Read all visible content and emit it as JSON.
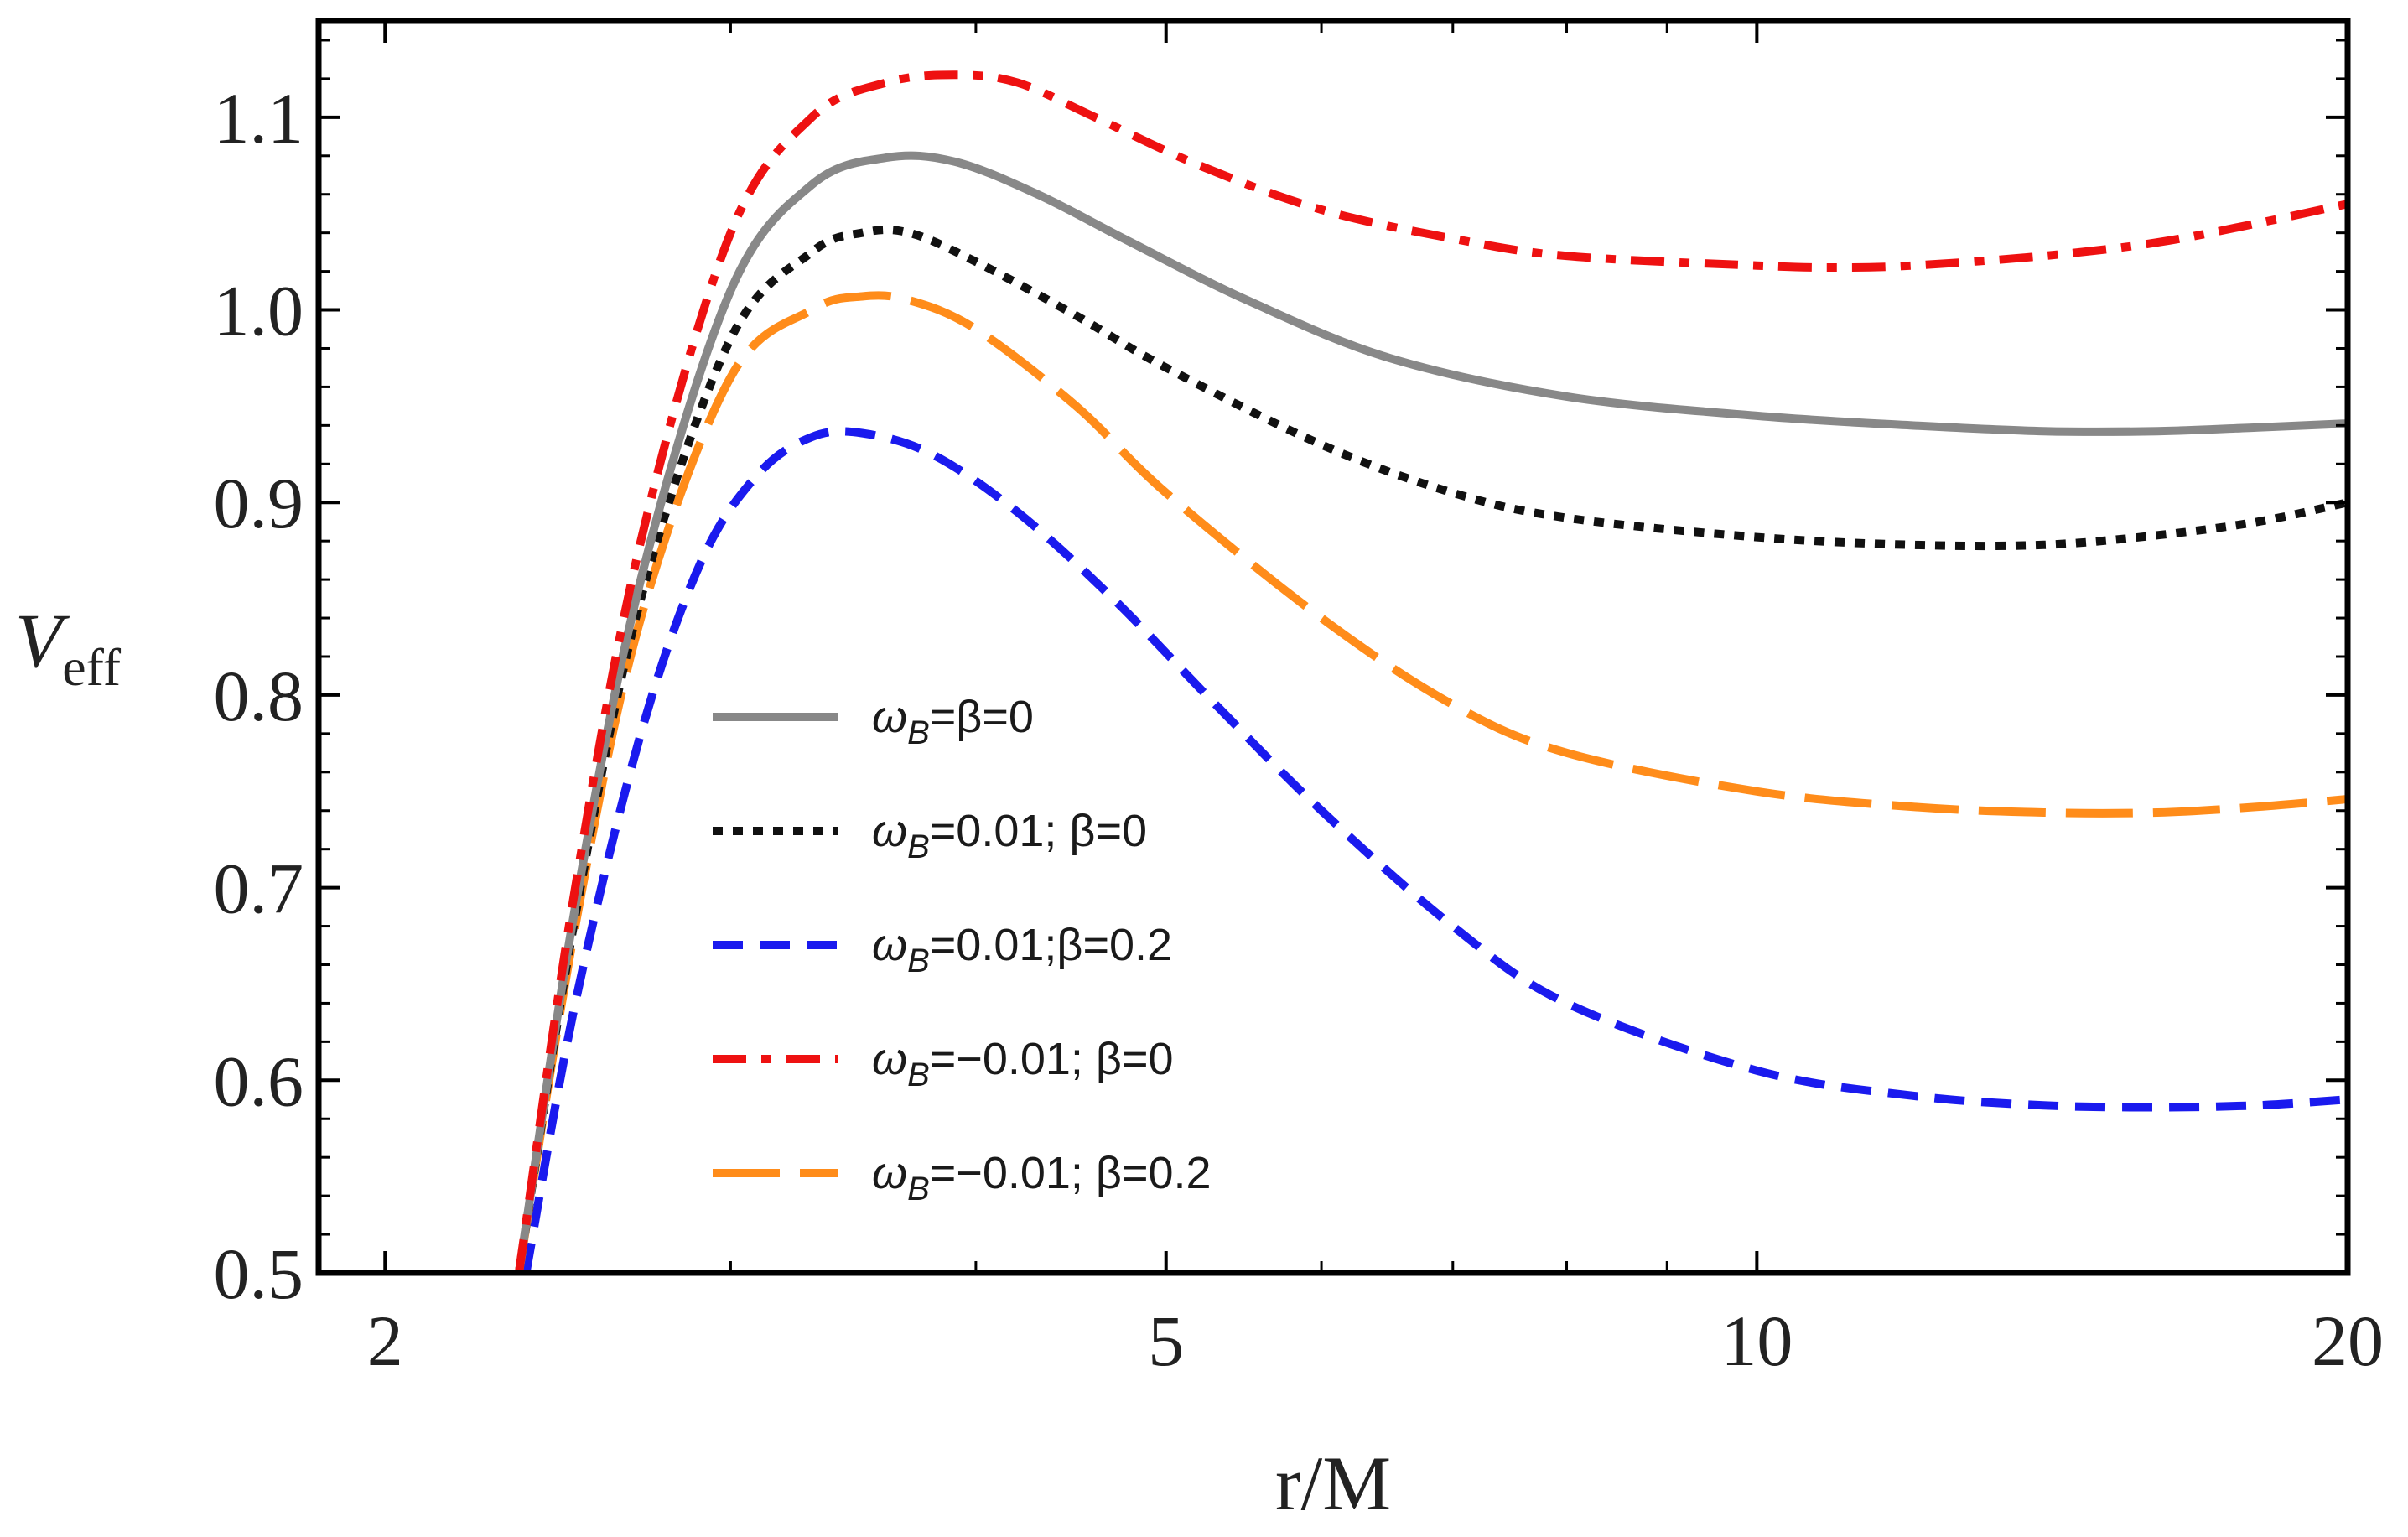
{
  "chart_data": {
    "type": "line",
    "title": "",
    "xlabel": "r/M",
    "ylabel": "V",
    "ylabel_subscript": "eff",
    "xscale": "log",
    "xlim": [
      1.85,
      20
    ],
    "ylim": [
      0.5,
      1.15
    ],
    "grid": false,
    "frame": "ticks on all four sides",
    "x_ticks": [
      {
        "value": 2,
        "label": "2"
      },
      {
        "value": 5,
        "label": "5"
      },
      {
        "value": 10,
        "label": "10"
      },
      {
        "value": 20,
        "label": "20"
      }
    ],
    "x_minor_ticks": [
      3,
      4,
      6,
      7,
      8,
      9
    ],
    "y_ticks": [
      {
        "value": 0.5,
        "label": "0.5"
      },
      {
        "value": 0.6,
        "label": "0.6"
      },
      {
        "value": 0.7,
        "label": "0.7"
      },
      {
        "value": 0.8,
        "label": "0.8"
      },
      {
        "value": 0.9,
        "label": "0.9"
      },
      {
        "value": 1.0,
        "label": "1.0"
      },
      {
        "value": 1.1,
        "label": "1.1"
      }
    ],
    "legend_position": "center",
    "series": [
      {
        "name": "ωB=β=0",
        "legend": {
          "w": "ω",
          "sub": "B",
          "rest": "=β=0"
        },
        "color": "#888888",
        "style": "solid",
        "x": [
          2.34,
          2.5,
          2.7,
          3.0,
          3.3,
          3.6,
          3.9,
          4.3,
          4.8,
          5.5,
          6.5,
          8.0,
          10.0,
          12.0,
          14.0,
          16.0,
          18.0,
          20.0
        ],
        "y": [
          0.5,
          0.69,
          0.86,
          1.01,
          1.065,
          1.079,
          1.077,
          1.06,
          1.035,
          1.005,
          0.975,
          0.955,
          0.945,
          0.94,
          0.937,
          0.937,
          0.939,
          0.941
        ]
      },
      {
        "name": "ωB=0.01; β=0",
        "legend": {
          "w": "ω",
          "sub": "B",
          "rest": "=0.01; β=0"
        },
        "color": "#111111",
        "style": "dotted",
        "x": [
          2.34,
          2.5,
          2.7,
          3.0,
          3.3,
          3.5,
          3.7,
          4.0,
          4.5,
          5.0,
          6.0,
          7.0,
          8.0,
          10.0,
          12.0,
          14.0,
          16.0,
          18.0,
          20.0
        ],
        "y": [
          0.5,
          0.685,
          0.85,
          0.985,
          1.03,
          1.04,
          1.04,
          1.025,
          0.997,
          0.97,
          0.93,
          0.905,
          0.892,
          0.882,
          0.878,
          0.878,
          0.883,
          0.89,
          0.9
        ]
      },
      {
        "name": "ωB=0.01;β=0.2",
        "legend": {
          "w": "ω",
          "sub": "B",
          "rest": "=0.01;β=0.2"
        },
        "color": "#1a1aee",
        "style": "dashed",
        "x": [
          2.36,
          2.5,
          2.7,
          2.9,
          3.1,
          3.3,
          3.5,
          3.8,
          4.2,
          4.7,
          5.3,
          6.0,
          7.0,
          8.0,
          10.0,
          12.0,
          14.0,
          16.0,
          18.0,
          20.0
        ],
        "y": [
          0.5,
          0.64,
          0.78,
          0.87,
          0.915,
          0.934,
          0.936,
          0.925,
          0.895,
          0.85,
          0.795,
          0.74,
          0.68,
          0.64,
          0.605,
          0.592,
          0.587,
          0.586,
          0.587,
          0.59
        ]
      },
      {
        "name": "ωB=−0.01; β=0",
        "legend": {
          "w": "ω",
          "sub": "B",
          "rest": "=−0.01; β=0"
        },
        "color": "#ee1111",
        "style": "dashdot",
        "x": [
          2.34,
          2.5,
          2.7,
          3.0,
          3.3,
          3.6,
          3.9,
          4.2,
          4.6,
          5.2,
          6.0,
          7.0,
          8.0,
          10.0,
          11.0,
          12.0,
          14.0,
          16.0,
          18.0,
          20.0
        ],
        "y": [
          0.5,
          0.7,
          0.88,
          1.04,
          1.1,
          1.118,
          1.122,
          1.118,
          1.1,
          1.075,
          1.052,
          1.037,
          1.028,
          1.023,
          1.022,
          1.023,
          1.028,
          1.035,
          1.045,
          1.055
        ]
      },
      {
        "name": "ωB=−0.01; β=0.2",
        "legend": {
          "w": "ω",
          "sub": "B",
          "rest": "=−0.01; β=0.2"
        },
        "color": "#ff8c1a",
        "style": "longdash",
        "x": [
          2.34,
          2.5,
          2.7,
          3.0,
          3.3,
          3.5,
          3.7,
          4.0,
          4.5,
          5.0,
          6.0,
          7.0,
          8.0,
          10.0,
          12.0,
          14.0,
          16.0,
          18.0,
          20.0
        ],
        "y": [
          0.5,
          0.68,
          0.84,
          0.965,
          1.0,
          1.007,
          1.005,
          0.99,
          0.95,
          0.905,
          0.84,
          0.795,
          0.77,
          0.75,
          0.742,
          0.739,
          0.739,
          0.742,
          0.746
        ]
      }
    ]
  }
}
